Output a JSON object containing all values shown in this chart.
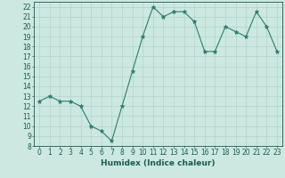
{
  "x": [
    0,
    1,
    2,
    3,
    4,
    5,
    6,
    7,
    8,
    9,
    10,
    11,
    12,
    13,
    14,
    15,
    16,
    17,
    18,
    19,
    20,
    21,
    22,
    23
  ],
  "y": [
    12.5,
    13.0,
    12.5,
    12.5,
    12.0,
    10.0,
    9.5,
    8.5,
    12.0,
    15.5,
    19.0,
    22.0,
    21.0,
    21.5,
    21.5,
    20.5,
    17.5,
    17.5,
    20.0,
    19.5,
    19.0,
    21.5,
    20.0,
    17.5
  ],
  "xlabel": "Humidex (Indice chaleur)",
  "ylim": [
    8,
    22.5
  ],
  "xlim": [
    -0.5,
    23.5
  ],
  "yticks": [
    8,
    9,
    10,
    11,
    12,
    13,
    14,
    15,
    16,
    17,
    18,
    19,
    20,
    21,
    22
  ],
  "xticks": [
    0,
    1,
    2,
    3,
    4,
    5,
    6,
    7,
    8,
    9,
    10,
    11,
    12,
    13,
    14,
    15,
    16,
    17,
    18,
    19,
    20,
    21,
    22,
    23
  ],
  "line_color": "#2d7d6e",
  "marker_color": "#2d7d6e",
  "bg_color": "#cce8e0",
  "grid_color": "#aed4cc",
  "label_color": "#1a5c52",
  "font_size": 5.5,
  "xlabel_fontsize": 6.5
}
